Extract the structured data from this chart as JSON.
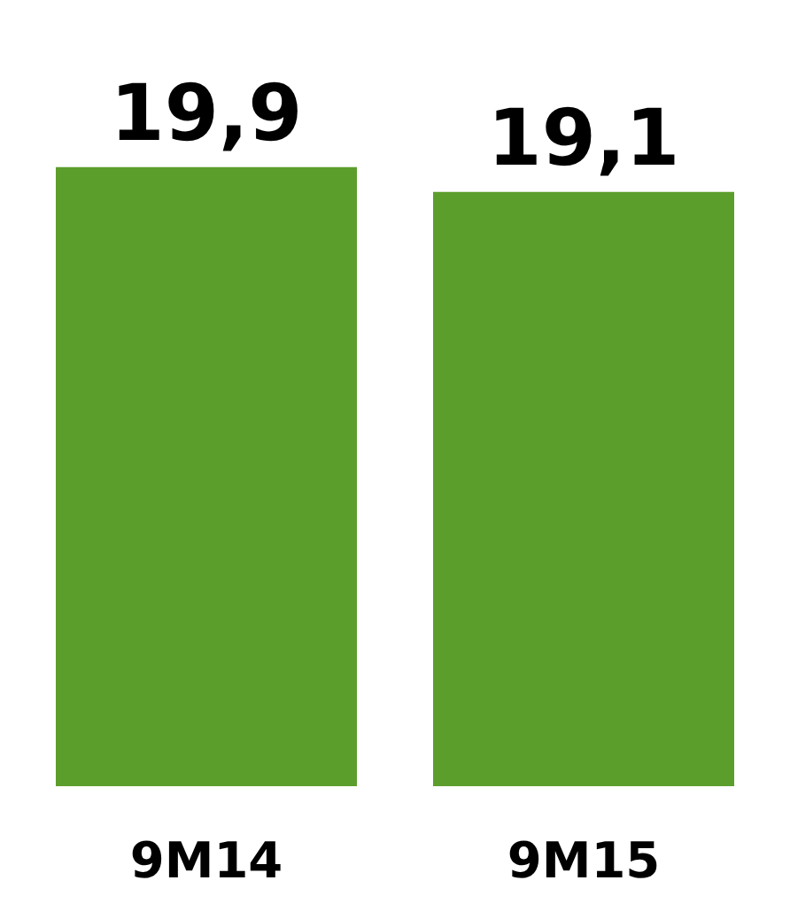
{
  "chart_data": {
    "type": "bar",
    "categories": [
      "9M14",
      "9M15"
    ],
    "values": [
      19.9,
      19.1
    ],
    "color": "#5c9e2c",
    "value_labels": [
      "19,9",
      "19,1"
    ]
  }
}
